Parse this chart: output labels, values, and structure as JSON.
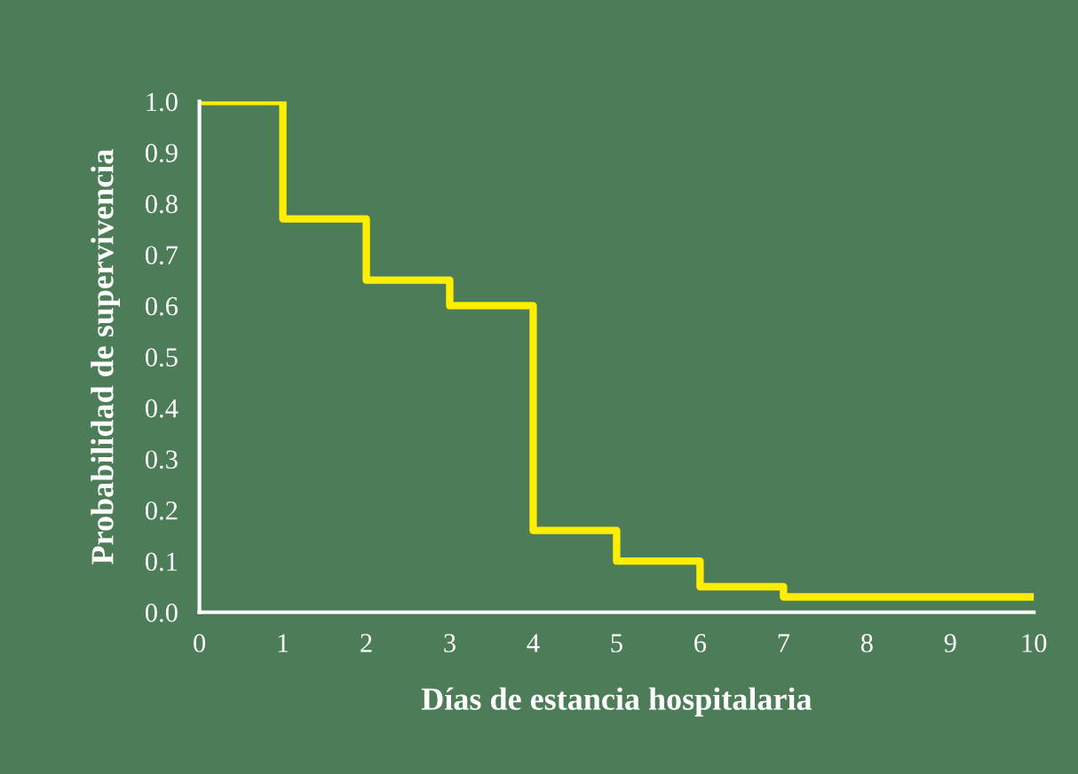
{
  "chart_data": {
    "type": "step",
    "xlabel": "Días de estancia hospitalaria",
    "ylabel": "Probabilidad de supervivencia",
    "x": [
      0,
      1,
      2,
      3,
      4,
      5,
      6,
      7,
      8,
      9,
      10
    ],
    "series": [
      {
        "color": "#ffee00",
        "values": [
          1.0,
          0.77,
          0.65,
          0.6,
          0.16,
          0.1,
          0.05,
          0.03,
          0.03,
          0.03,
          0.03
        ]
      }
    ],
    "xlim": [
      0,
      10
    ],
    "xticks": [
      0,
      1,
      2,
      3,
      4,
      5,
      6,
      7,
      8,
      9,
      10
    ],
    "ylim": [
      0,
      1.0
    ],
    "yticks": [
      {
        "value": 0,
        "label": "0.0"
      },
      0.1,
      0.2,
      0.3,
      0.4,
      0.5,
      0.6,
      0.7,
      0.8,
      0.9,
      {
        "value": 1.0,
        "label": "1.0"
      }
    ],
    "grid": false,
    "marker": "none",
    "line_style": "solid"
  }
}
